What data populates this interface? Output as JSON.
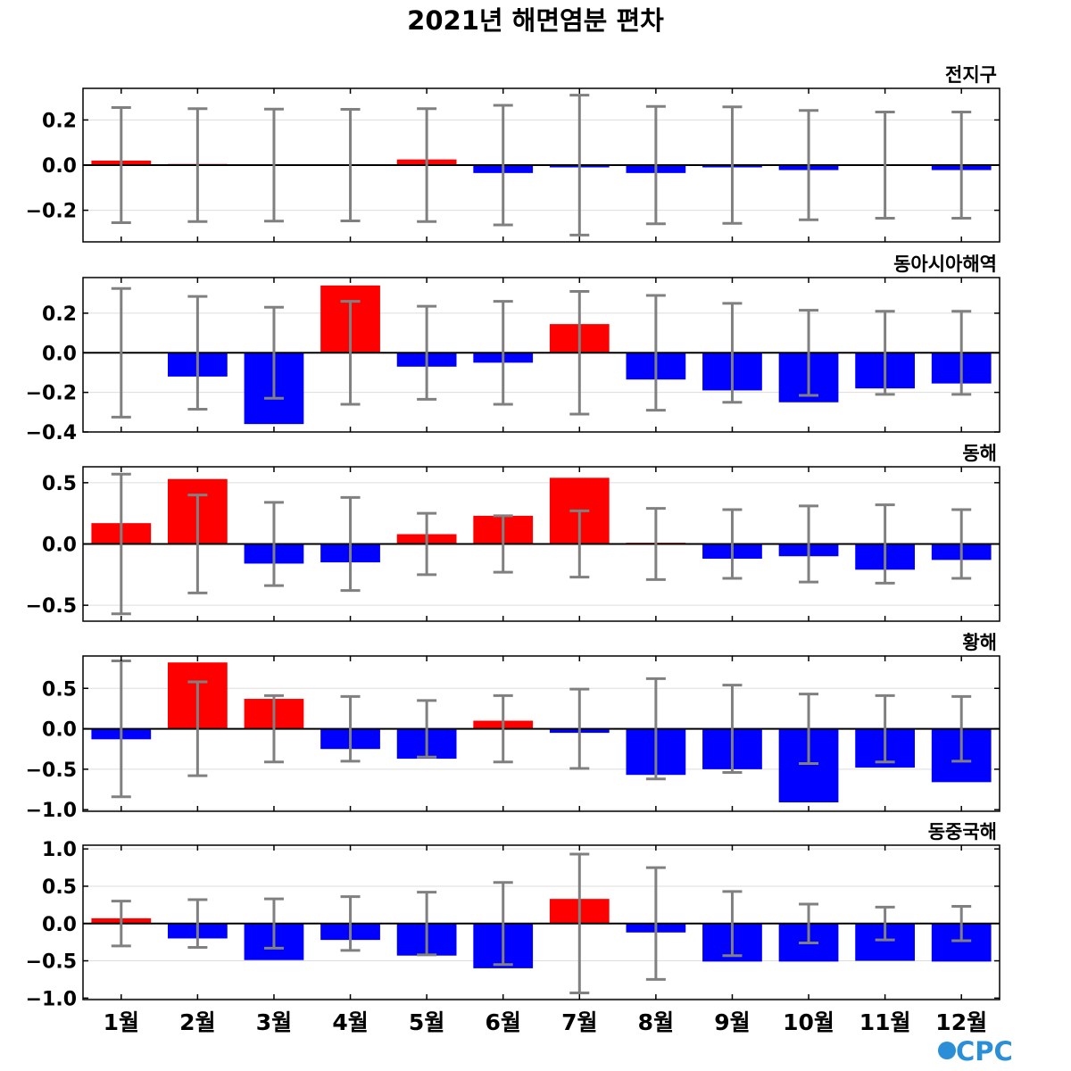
{
  "title": "2021년 해면염분 편차",
  "logo": "CPC",
  "colors": {
    "positive": "#ff0000",
    "negative": "#0000ff",
    "error_bar": "#808080",
    "zero_line": "#000000",
    "grid": "#dddddd"
  },
  "chart_data": [
    {
      "type": "bar",
      "title": "전지구",
      "categories": [
        "1월",
        "2월",
        "3월",
        "4월",
        "5월",
        "6월",
        "7월",
        "8월",
        "9월",
        "10월",
        "11월",
        "12월"
      ],
      "values": [
        0.02,
        0.005,
        0.002,
        0.004,
        0.025,
        -0.035,
        -0.01,
        -0.035,
        -0.01,
        -0.022,
        0.003,
        -0.022
      ],
      "error_bars": [
        0.255,
        0.25,
        0.248,
        0.247,
        0.25,
        0.265,
        0.31,
        0.26,
        0.258,
        0.242,
        0.235,
        0.235
      ],
      "ylim": [
        -0.34,
        0.34
      ],
      "yticks": [
        -0.2,
        0.0,
        0.2
      ],
      "ytick_labels": [
        "−0.2",
        "0.0",
        "0.2"
      ],
      "grid": true
    },
    {
      "type": "bar",
      "title": "동아시아해역",
      "categories": [
        "1월",
        "2월",
        "3월",
        "4월",
        "5월",
        "6월",
        "7월",
        "8월",
        "9월",
        "10월",
        "11월",
        "12월"
      ],
      "values": [
        0.003,
        -0.12,
        -0.36,
        0.34,
        -0.07,
        -0.05,
        0.145,
        -0.135,
        -0.19,
        -0.25,
        -0.18,
        -0.155
      ],
      "error_bars": [
        0.325,
        0.285,
        0.23,
        0.26,
        0.235,
        0.26,
        0.31,
        0.29,
        0.25,
        0.215,
        0.21,
        0.21
      ],
      "ylim": [
        -0.4,
        0.38
      ],
      "yticks": [
        -0.4,
        -0.2,
        0.0,
        0.2
      ],
      "ytick_labels": [
        "−0.4",
        "−0.2",
        "0.0",
        "0.2"
      ],
      "grid": true
    },
    {
      "type": "bar",
      "title": "동해",
      "categories": [
        "1월",
        "2월",
        "3월",
        "4월",
        "5월",
        "6월",
        "7월",
        "8월",
        "9월",
        "10월",
        "11월",
        "12월"
      ],
      "values": [
        0.17,
        0.53,
        -0.16,
        -0.15,
        0.08,
        0.23,
        0.54,
        0.01,
        -0.12,
        -0.1,
        -0.21,
        -0.13
      ],
      "error_bars": [
        0.57,
        0.4,
        0.34,
        0.38,
        0.25,
        0.23,
        0.27,
        0.29,
        0.28,
        0.31,
        0.32,
        0.28
      ],
      "ylim": [
        -0.63,
        0.63
      ],
      "yticks": [
        -0.5,
        0.0,
        0.5
      ],
      "ytick_labels": [
        "−0.5",
        "0.0",
        "0.5"
      ],
      "grid": true
    },
    {
      "type": "bar",
      "title": "황해",
      "categories": [
        "1월",
        "2월",
        "3월",
        "4월",
        "5월",
        "6월",
        "7월",
        "8월",
        "9월",
        "10월",
        "11월",
        "12월"
      ],
      "values": [
        -0.13,
        0.82,
        0.37,
        -0.25,
        -0.37,
        0.1,
        -0.05,
        -0.57,
        -0.5,
        -0.91,
        -0.48,
        -0.66
      ],
      "error_bars": [
        0.84,
        0.58,
        0.41,
        0.4,
        0.35,
        0.41,
        0.49,
        0.62,
        0.54,
        0.43,
        0.41,
        0.4
      ],
      "ylim": [
        -1.02,
        0.9
      ],
      "yticks": [
        -1.0,
        -0.5,
        0.0,
        0.5
      ],
      "ytick_labels": [
        "−1.0",
        "−0.5",
        "0.0",
        "0.5"
      ],
      "grid": true
    },
    {
      "type": "bar",
      "title": "동중국해",
      "categories": [
        "1월",
        "2월",
        "3월",
        "4월",
        "5월",
        "6월",
        "7월",
        "8월",
        "9월",
        "10월",
        "11월",
        "12월"
      ],
      "values": [
        0.07,
        -0.2,
        -0.49,
        -0.22,
        -0.43,
        -0.6,
        0.33,
        -0.12,
        -0.51,
        -0.51,
        -0.5,
        -0.51
      ],
      "error_bars": [
        0.3,
        0.32,
        0.33,
        0.36,
        0.42,
        0.55,
        0.93,
        0.75,
        0.43,
        0.26,
        0.22,
        0.23
      ],
      "ylim": [
        -1.02,
        1.05
      ],
      "yticks": [
        -1.0,
        -0.5,
        0.0,
        0.5,
        1.0
      ],
      "ytick_labels": [
        "−1.0",
        "−0.5",
        "0.0",
        "0.5",
        "1.0"
      ],
      "grid": true
    }
  ]
}
